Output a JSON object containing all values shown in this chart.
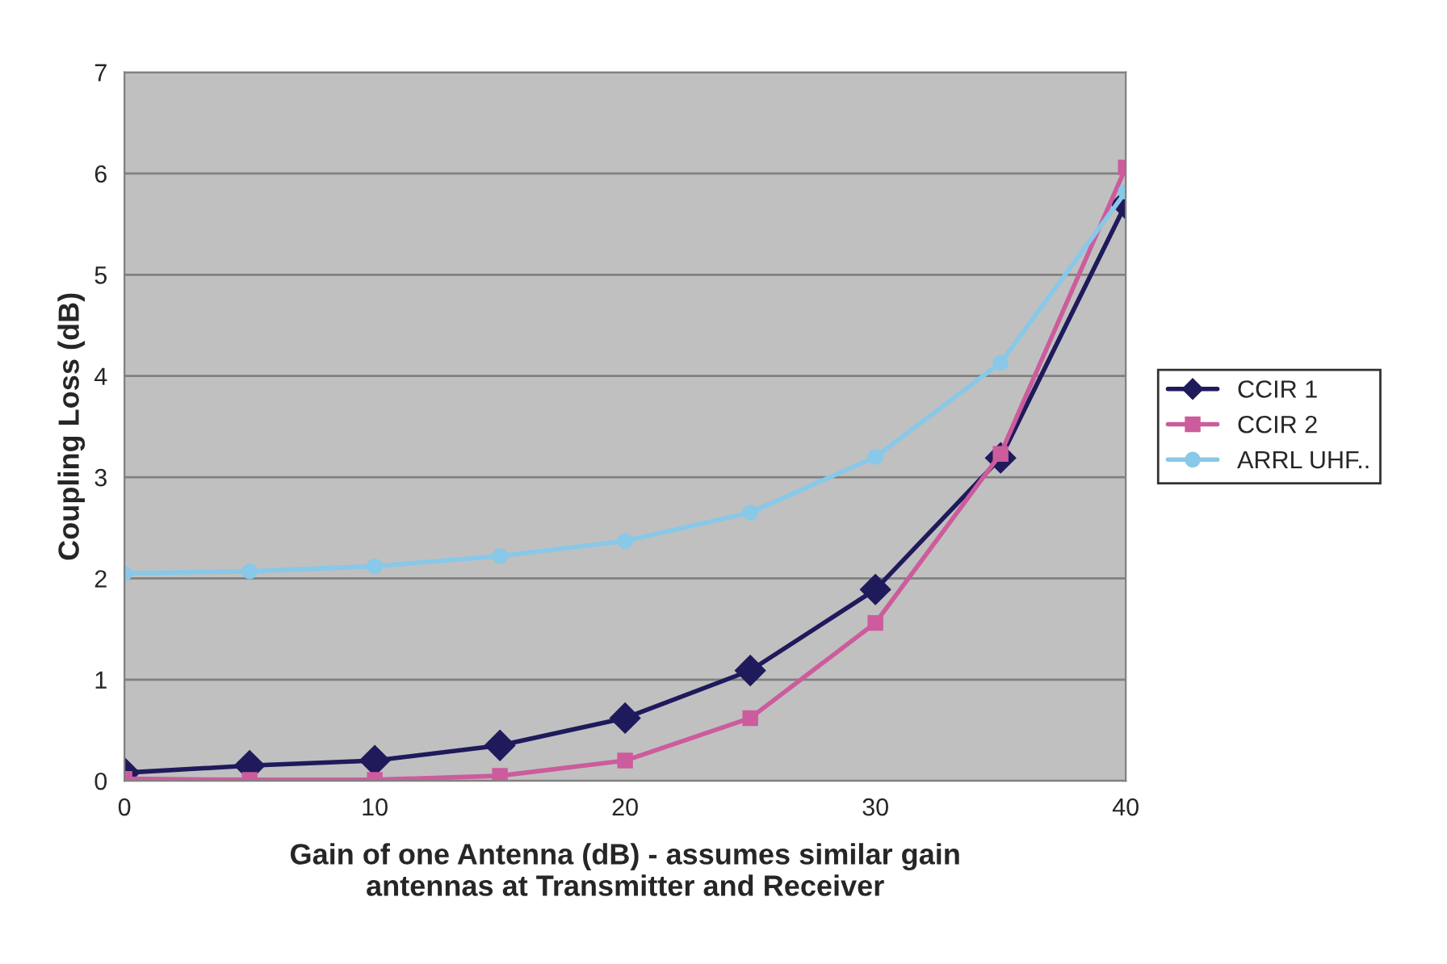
{
  "chart_data": {
    "type": "line",
    "xlabel": "Gain of one Antenna (dB) - assumes similar gain\nantennas at Transmitter and Receiver",
    "ylabel": "Coupling Loss (dB)",
    "x": [
      0,
      5,
      10,
      15,
      20,
      25,
      30,
      35,
      40
    ],
    "series": [
      {
        "name": "CCIR 1",
        "color": "#1f1a5c",
        "marker": "diamond",
        "values": [
          0.08,
          0.15,
          0.2,
          0.35,
          0.62,
          1.09,
          1.89,
          3.19,
          5.7
        ]
      },
      {
        "name": "CCIR 2",
        "color": "#cc5c9c",
        "marker": "square",
        "values": [
          0.02,
          0.01,
          0.01,
          0.05,
          0.2,
          0.62,
          1.56,
          3.23,
          6.06
        ]
      },
      {
        "name": "ARRL UHF..",
        "color": "#88c8e8",
        "marker": "circle",
        "values": [
          2.05,
          2.07,
          2.12,
          2.22,
          2.37,
          2.65,
          3.2,
          4.13,
          5.82
        ]
      }
    ],
    "xlim": [
      0,
      40
    ],
    "xticks": [
      0,
      10,
      20,
      30,
      40
    ],
    "ylim": [
      0,
      7
    ],
    "yticks": [
      0,
      1,
      2,
      3,
      4,
      5,
      6,
      7
    ],
    "grid": "y",
    "legend": "right",
    "line_style": "solid"
  }
}
